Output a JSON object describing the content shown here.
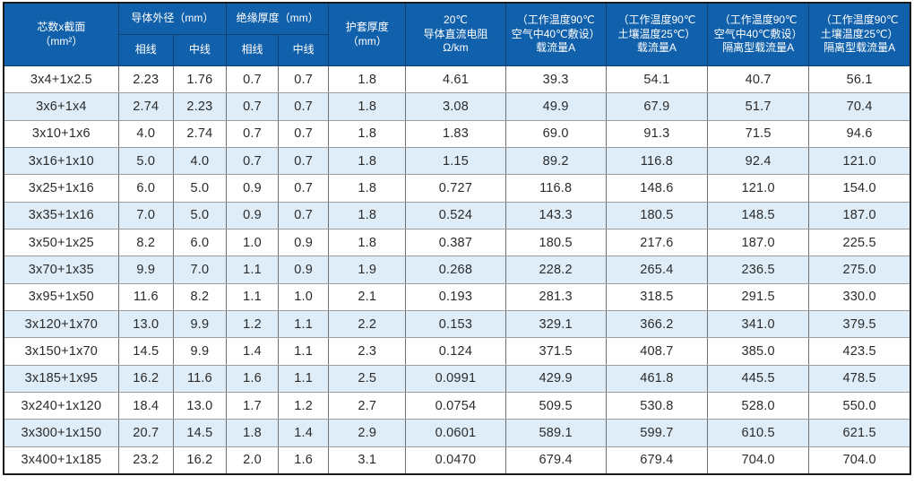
{
  "colors": {
    "header_bg": "#1160AB",
    "header_text": "#FFFFFF",
    "stripe_bg": "#DEEDF8",
    "row_bg": "#FFFFFF",
    "body_text": "#2B2B2B"
  },
  "table": {
    "header": {
      "core_size": "芯数x截面\n（mm²）",
      "conductor_od": "导体外径（mm）",
      "insulation_thickness": "绝缘厚度（mm）",
      "phase_line_od": "相线",
      "neutral_line_od": "中线",
      "phase_line_ins": "相线",
      "neutral_line_ins": "中线",
      "sheath_thickness": "护套厚度\n（mm）",
      "dc_resistance": "20℃\n导体直流电阻\nΩ/km",
      "ampacity_air": "（工作温度90℃\n空气中40℃敷设）\n载流量A",
      "ampacity_soil": "（工作温度90℃\n土壤温度25℃）\n载流量A",
      "ampacity_air_isolated": "（工作温度90℃\n空气中40℃敷设）\n隔离型载流量A",
      "ampacity_soil_isolated": "（工作温度90℃\n土壤温度25℃）\n隔离型载流量A"
    },
    "rows": [
      [
        "3x4+1x2.5",
        "2.23",
        "1.76",
        "0.7",
        "0.7",
        "1.8",
        "4.61",
        "39.3",
        "54.1",
        "40.7",
        "56.1"
      ],
      [
        "3x6+1x4",
        "2.74",
        "2.23",
        "0.7",
        "0.7",
        "1.8",
        "3.08",
        "49.9",
        "67.9",
        "51.7",
        "70.4"
      ],
      [
        "3x10+1x6",
        "4.0",
        "2.74",
        "0.7",
        "0.7",
        "1.8",
        "1.83",
        "69.0",
        "91.3",
        "71.5",
        "94.6"
      ],
      [
        "3x16+1x10",
        "5.0",
        "4.0",
        "0.7",
        "0.7",
        "1.8",
        "1.15",
        "89.2",
        "116.8",
        "92.4",
        "121.0"
      ],
      [
        "3x25+1x16",
        "6.0",
        "5.0",
        "0.9",
        "0.7",
        "1.8",
        "0.727",
        "116.8",
        "148.6",
        "121.0",
        "154.0"
      ],
      [
        "3x35+1x16",
        "7.0",
        "5.0",
        "0.9",
        "0.7",
        "1.8",
        "0.524",
        "143.3",
        "180.5",
        "148.5",
        "187.0"
      ],
      [
        "3x50+1x25",
        "8.2",
        "6.0",
        "1.0",
        "0.9",
        "1.8",
        "0.387",
        "180.5",
        "217.6",
        "187.0",
        "225.5"
      ],
      [
        "3x70+1x35",
        "9.9",
        "7.0",
        "1.1",
        "0.9",
        "1.9",
        "0.268",
        "228.2",
        "265.4",
        "236.5",
        "275.0"
      ],
      [
        "3x95+1x50",
        "11.6",
        "8.2",
        "1.1",
        "1.0",
        "2.1",
        "0.193",
        "281.3",
        "318.5",
        "291.5",
        "330.0"
      ],
      [
        "3x120+1x70",
        "13.0",
        "9.9",
        "1.2",
        "1.1",
        "2.2",
        "0.153",
        "329.1",
        "366.2",
        "341.0",
        "379.5"
      ],
      [
        "3x150+1x70",
        "14.5",
        "9.9",
        "1.4",
        "1.1",
        "2.3",
        "0.124",
        "371.5",
        "408.7",
        "385.0",
        "423.5"
      ],
      [
        "3x185+1x95",
        "16.2",
        "11.6",
        "1.6",
        "1.1",
        "2.5",
        "0.0991",
        "429.9",
        "461.8",
        "445.5",
        "478.5"
      ],
      [
        "3x240+1x120",
        "18.4",
        "13.0",
        "1.7",
        "1.2",
        "2.7",
        "0.0754",
        "509.5",
        "530.8",
        "528.0",
        "550.0"
      ],
      [
        "3x300+1x150",
        "20.7",
        "14.5",
        "1.8",
        "1.4",
        "2.9",
        "0.0601",
        "589.1",
        "599.7",
        "610.5",
        "621.5"
      ],
      [
        "3x400+1x185",
        "23.2",
        "16.2",
        "2.0",
        "1.6",
        "3.1",
        "0.0470",
        "679.4",
        "679.4",
        "704.0",
        "704.0"
      ]
    ]
  }
}
